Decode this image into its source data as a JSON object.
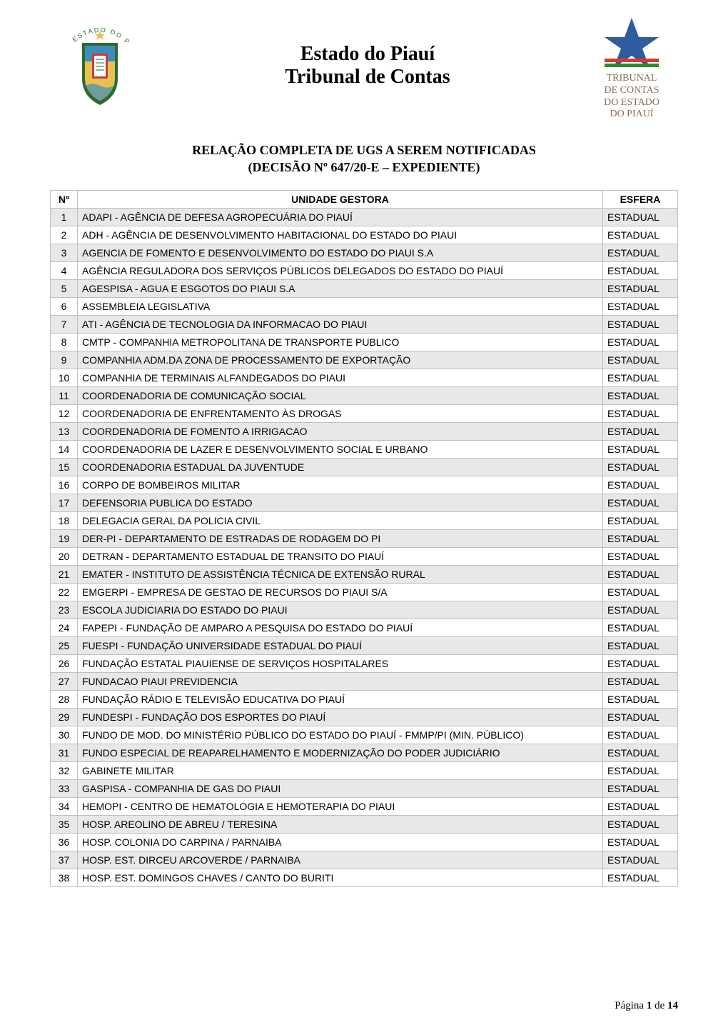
{
  "header": {
    "title_line1": "Estado do Piauí",
    "title_line2": "Tribunal de Contas",
    "left_logo": {
      "arc_text": "ESTADO DO PIAUÍ",
      "arc_color": "#2d6b2d",
      "shield_outer": "#2d6b2d",
      "shield_inner_top": "#3c8dbc",
      "shield_inner_bottom": "#e8c050",
      "shield_red": "#c43c3c"
    },
    "right_logo": {
      "star_color": "#2e5c9e",
      "bar_red": "#d63838",
      "bar_green": "#2e8b2e",
      "text_line1": "TRIBUNAL",
      "text_line2": "DE CONTAS",
      "text_line3": "DO ESTADO",
      "text_line4": "DO PIAUÍ",
      "text_color": "#8a7050"
    }
  },
  "subtitle": {
    "line1": "RELAÇÃO COMPLETA DE UGS A SEREM NOTIFICADAS",
    "line2": "(DECISÃO Nº 647/20-E – EXPEDIENTE)"
  },
  "table": {
    "columns": [
      "Nº",
      "UNIDADE GESTORA",
      "ESFERA"
    ],
    "col_widths": [
      "38px",
      "auto",
      "105px"
    ],
    "header_bg": "#ffffff",
    "row_even_bg": "#e8e8e8",
    "row_odd_bg": "#ffffff",
    "border_color": "#bfbfbf",
    "font_size": 14,
    "rows": [
      {
        "n": "1",
        "unidade": "ADAPI - AGÊNCIA DE DEFESA AGROPECUÁRIA DO PIAUÍ",
        "esfera": "ESTADUAL"
      },
      {
        "n": "2",
        "unidade": "ADH - AGÊNCIA DE DESENVOLVIMENTO HABITACIONAL DO ESTADO DO PIAUI",
        "esfera": "ESTADUAL"
      },
      {
        "n": "3",
        "unidade": "AGENCIA DE FOMENTO E DESENVOLVIMENTO DO ESTADO DO PIAUI S.A",
        "esfera": "ESTADUAL"
      },
      {
        "n": "4",
        "unidade": "AGÊNCIA REGULADORA DOS SERVIÇOS PÚBLICOS DELEGADOS DO ESTADO DO PIAUÍ",
        "esfera": "ESTADUAL"
      },
      {
        "n": "5",
        "unidade": "AGESPISA - AGUA E ESGOTOS DO PIAUI S.A",
        "esfera": "ESTADUAL"
      },
      {
        "n": "6",
        "unidade": "ASSEMBLEIA LEGISLATIVA",
        "esfera": "ESTADUAL"
      },
      {
        "n": "7",
        "unidade": "ATI - AGÊNCIA DE TECNOLOGIA DA INFORMACAO DO PIAUI",
        "esfera": "ESTADUAL"
      },
      {
        "n": "8",
        "unidade": "CMTP - COMPANHIA METROPOLITANA DE TRANSPORTE PUBLICO",
        "esfera": "ESTADUAL"
      },
      {
        "n": "9",
        "unidade": "COMPANHIA ADM.DA ZONA DE PROCESSAMENTO DE EXPORTAÇÃO",
        "esfera": "ESTADUAL"
      },
      {
        "n": "10",
        "unidade": "COMPANHIA DE TERMINAIS ALFANDEGADOS DO PIAUI",
        "esfera": "ESTADUAL"
      },
      {
        "n": "11",
        "unidade": "COORDENADORIA DE COMUNICAÇÃO SOCIAL",
        "esfera": "ESTADUAL"
      },
      {
        "n": "12",
        "unidade": "COORDENADORIA DE ENFRENTAMENTO ÀS DROGAS",
        "esfera": "ESTADUAL"
      },
      {
        "n": "13",
        "unidade": "COORDENADORIA DE FOMENTO A IRRIGACAO",
        "esfera": "ESTADUAL"
      },
      {
        "n": "14",
        "unidade": "COORDENADORIA DE LAZER E DESENVOLVIMENTO SOCIAL E URBANO",
        "esfera": "ESTADUAL"
      },
      {
        "n": "15",
        "unidade": "COORDENADORIA ESTADUAL DA JUVENTUDE",
        "esfera": "ESTADUAL"
      },
      {
        "n": "16",
        "unidade": "CORPO DE BOMBEIROS MILITAR",
        "esfera": "ESTADUAL"
      },
      {
        "n": "17",
        "unidade": "DEFENSORIA PUBLICA DO ESTADO",
        "esfera": "ESTADUAL"
      },
      {
        "n": "18",
        "unidade": "DELEGACIA GERAL DA POLICIA CIVIL",
        "esfera": "ESTADUAL"
      },
      {
        "n": "19",
        "unidade": "DER-PI - DEPARTAMENTO DE ESTRADAS DE RODAGEM DO PI",
        "esfera": "ESTADUAL"
      },
      {
        "n": "20",
        "unidade": "DETRAN - DEPARTAMENTO ESTADUAL DE TRANSITO DO PIAUÍ",
        "esfera": "ESTADUAL"
      },
      {
        "n": "21",
        "unidade": "EMATER - INSTITUTO DE ASSISTÊNCIA TÉCNICA DE EXTENSÃO RURAL",
        "esfera": "ESTADUAL"
      },
      {
        "n": "22",
        "unidade": "EMGERPI - EMPRESA DE GESTAO DE RECURSOS DO PIAUI S/A",
        "esfera": "ESTADUAL"
      },
      {
        "n": "23",
        "unidade": "ESCOLA JUDICIARIA DO ESTADO DO PIAUI",
        "esfera": "ESTADUAL"
      },
      {
        "n": "24",
        "unidade": "FAPEPI - FUNDAÇÃO DE AMPARO A PESQUISA DO ESTADO DO PIAUÍ",
        "esfera": "ESTADUAL"
      },
      {
        "n": "25",
        "unidade": "FUESPI - FUNDAÇÃO UNIVERSIDADE ESTADUAL DO PIAUÍ",
        "esfera": "ESTADUAL"
      },
      {
        "n": "26",
        "unidade": "FUNDAÇÃO ESTATAL PIAUIENSE DE SERVIÇOS HOSPITALARES",
        "esfera": "ESTADUAL"
      },
      {
        "n": "27",
        "unidade": "FUNDACAO PIAUI PREVIDENCIA",
        "esfera": "ESTADUAL"
      },
      {
        "n": "28",
        "unidade": "FUNDAÇÃO RÁDIO E TELEVISÃO EDUCATIVA DO PIAUÍ",
        "esfera": "ESTADUAL"
      },
      {
        "n": "29",
        "unidade": "FUNDESPI - FUNDAÇÃO DOS ESPORTES DO PIAUÍ",
        "esfera": "ESTADUAL"
      },
      {
        "n": "30",
        "unidade": "FUNDO DE MOD. DO MINISTÉRIO PÚBLICO DO ESTADO DO PIAUÍ - FMMP/PI (MIN. PÚBLICO)",
        "esfera": "ESTADUAL"
      },
      {
        "n": "31",
        "unidade": "FUNDO ESPECIAL DE REAPARELHAMENTO E MODERNIZAÇÃO DO PODER JUDICIÁRIO",
        "esfera": "ESTADUAL"
      },
      {
        "n": "32",
        "unidade": "GABINETE MILITAR",
        "esfera": "ESTADUAL"
      },
      {
        "n": "33",
        "unidade": "GASPISA - COMPANHIA DE GAS DO PIAUI",
        "esfera": "ESTADUAL"
      },
      {
        "n": "34",
        "unidade": "HEMOPI - CENTRO DE HEMATOLOGIA E HEMOTERAPIA DO PIAUI",
        "esfera": "ESTADUAL"
      },
      {
        "n": "35",
        "unidade": "HOSP. AREOLINO DE ABREU / TERESINA",
        "esfera": "ESTADUAL"
      },
      {
        "n": "36",
        "unidade": "HOSP. COLONIA DO CARPINA / PARNAIBA",
        "esfera": "ESTADUAL"
      },
      {
        "n": "37",
        "unidade": "HOSP. EST. DIRCEU ARCOVERDE / PARNAIBA",
        "esfera": "ESTADUAL"
      },
      {
        "n": "38",
        "unidade": "HOSP. EST. DOMINGOS CHAVES / CANTO DO BURITI",
        "esfera": "ESTADUAL"
      }
    ]
  },
  "footer": {
    "prefix": "Página ",
    "current": "1",
    "middle": " de ",
    "total": "14"
  }
}
